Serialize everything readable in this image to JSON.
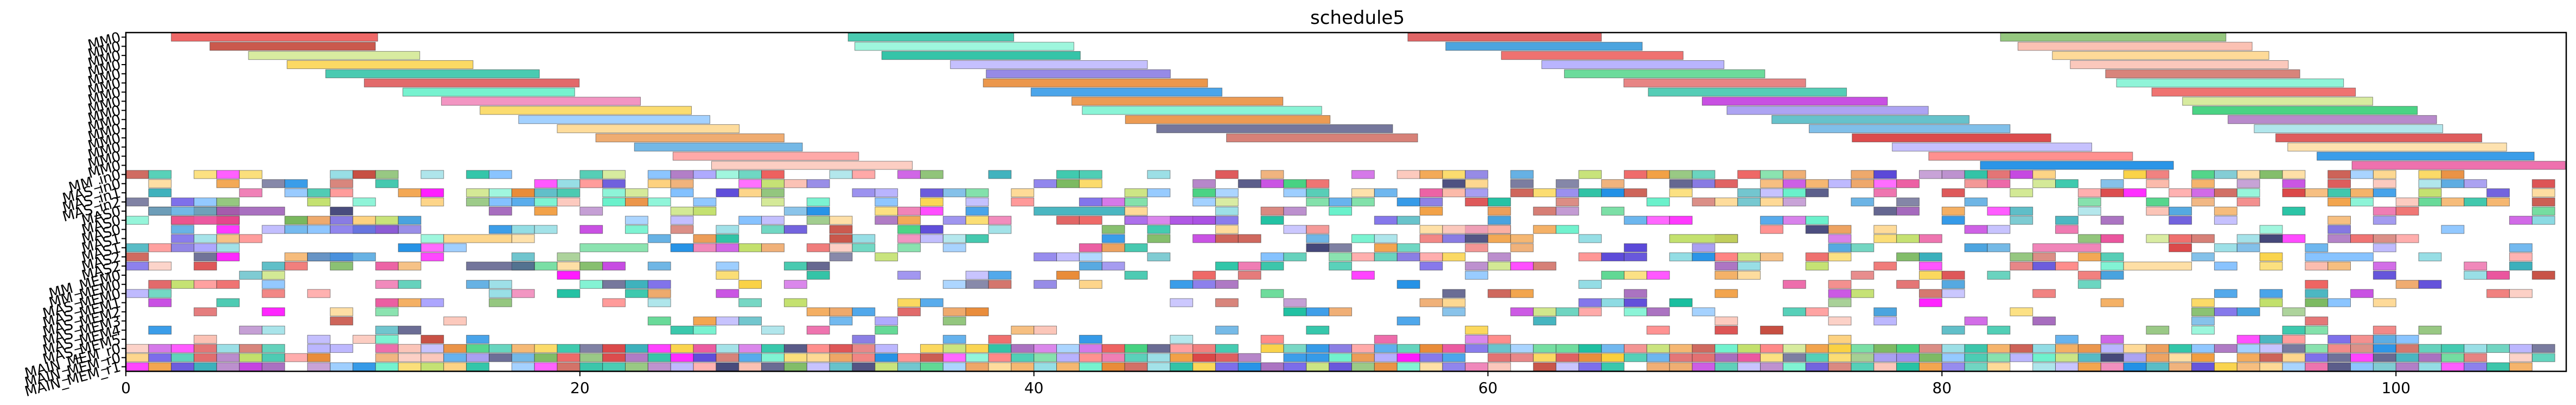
{
  "chart_data": {
    "type": "gantt",
    "title": "schedule5",
    "xlabel": "",
    "ylabel": "",
    "xlim": [
      0,
      107.5
    ],
    "xticks": [
      0,
      20,
      40,
      60,
      80,
      100
    ],
    "rows": [
      "MM0",
      "MM0",
      "MM0",
      "MM0",
      "MM0",
      "MM0",
      "MM0",
      "MM0",
      "MM0",
      "MM0",
      "MM0",
      "MM0",
      "MM0",
      "MM0",
      "MM0",
      "MM_in0",
      "MAS_in0",
      "MAS_in1",
      "MAS_in2",
      "MAS0",
      "MAS0",
      "MAS0",
      "MAS1",
      "MAS1",
      "MAS2",
      "MAS2",
      "MM_MEM0",
      "MM_MEM0",
      "MAS_MEM0",
      "MAS_MEM1",
      "MAS_MEM2",
      "MAS_MEM3",
      "MAS_MEM4",
      "MAS_MEM5",
      "MAIN_MEM_r0",
      "MAIN_MEM_r0",
      "MAIN_MEM_r1"
    ],
    "grid": false,
    "legend": "none"
  }
}
